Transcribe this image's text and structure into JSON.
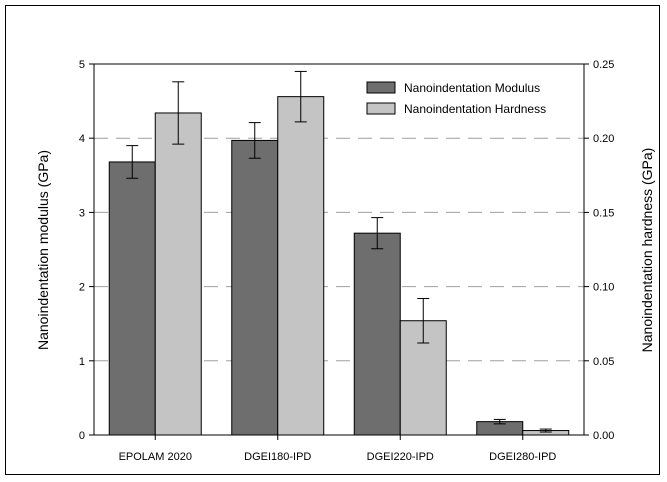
{
  "chart_data": {
    "type": "bar",
    "title": "",
    "categories": [
      "EPOLAM 2020",
      "DGEI180-IPD",
      "DGEI220-IPD",
      "DGEI280-IPD"
    ],
    "series": [
      {
        "name": "Nanoindentation Modulus",
        "axis": "left",
        "color": "#6e6e6e",
        "values": [
          3.68,
          3.97,
          2.72,
          0.18
        ],
        "error": [
          0.22,
          0.24,
          0.21,
          0.03
        ]
      },
      {
        "name": "Nanoindentation Hardness",
        "axis": "right",
        "color": "#c4c4c4",
        "values": [
          0.217,
          0.228,
          0.077,
          0.003
        ],
        "error": [
          0.021,
          0.017,
          0.015,
          0.001
        ]
      }
    ],
    "ylabel": "Nanoindentation modulus (GPa)",
    "ylim": [
      0,
      5
    ],
    "yticks": [
      "0",
      "1",
      "2",
      "3",
      "4",
      "5"
    ],
    "y2label": "Nanoindentation hardness (GPa)",
    "y2lim": [
      0,
      0.25
    ],
    "y2ticks": [
      "0.00",
      "0.05",
      "0.10",
      "0.15",
      "0.20",
      "0.25"
    ],
    "grid": "horizontal-dashed",
    "legend": "top-right"
  }
}
